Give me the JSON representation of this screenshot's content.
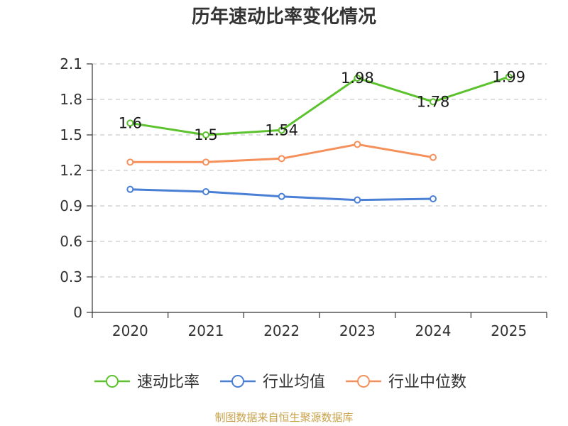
{
  "chart_data": {
    "type": "line",
    "title": "历年速动比率变化情况",
    "categories": [
      "2020",
      "2021",
      "2022",
      "2023",
      "2024",
      "2025"
    ],
    "ylim": [
      0,
      2.1
    ],
    "yticks": [
      "0",
      "0.3",
      "0.6",
      "0.9",
      "1.2",
      "1.5",
      "1.8",
      "2.1"
    ],
    "series": [
      {
        "name": "速动比率",
        "color": "#5cc22d",
        "values": [
          1.6,
          1.5,
          1.54,
          1.98,
          1.78,
          1.99
        ],
        "labels": [
          "1.6",
          "1.5",
          "1.54",
          "1.98",
          "1.78",
          "1.99"
        ]
      },
      {
        "name": "行业均值",
        "color": "#4a7fd6",
        "values": [
          1.04,
          1.02,
          0.98,
          0.95,
          0.96,
          null
        ]
      },
      {
        "name": "行业中位数",
        "color": "#f5905a",
        "values": [
          1.27,
          1.27,
          1.3,
          1.42,
          1.31,
          null
        ]
      }
    ],
    "legend_position": "bottom",
    "grid": true
  },
  "source_text": "制图数据来自恒生聚源数据库"
}
